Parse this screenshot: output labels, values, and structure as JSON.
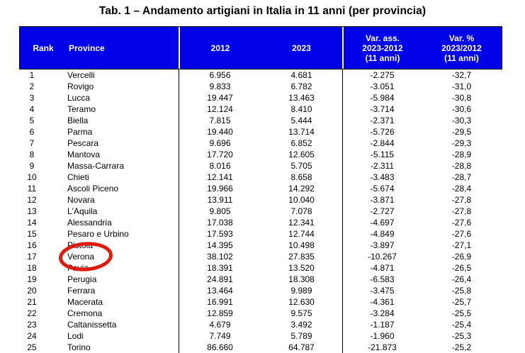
{
  "title": "Tab. 1 – Andamento artigiani in Italia in 11 anni (per provincia)",
  "table": {
    "columns": [
      "Rank",
      "Province",
      "2012",
      "2023",
      "Var. ass.\n2023-2012\n(11 anni)",
      "Var. %\n2023/2012\n(11 anni)"
    ],
    "rows": [
      [
        "1",
        "Vercelli",
        "6.956",
        "4.681",
        "-2.275",
        "-32,7"
      ],
      [
        "2",
        "Rovigo",
        "9.833",
        "6.782",
        "-3.051",
        "-31,0"
      ],
      [
        "3",
        "Lucca",
        "19.447",
        "13.463",
        "-5.984",
        "-30,8"
      ],
      [
        "4",
        "Teramo",
        "12.124",
        "8.410",
        "-3.714",
        "-30,6"
      ],
      [
        "5",
        "Biella",
        "7.815",
        "5.444",
        "-2.371",
        "-30,3"
      ],
      [
        "6",
        "Parma",
        "19.440",
        "13.714",
        "-5.726",
        "-29,5"
      ],
      [
        "7",
        "Pescara",
        "9.696",
        "6.852",
        "-2.844",
        "-29,3"
      ],
      [
        "8",
        "Mantova",
        "17.720",
        "12.605",
        "-5.115",
        "-28,9"
      ],
      [
        "9",
        "Massa-Carrara",
        "8.016",
        "5.705",
        "-2.311",
        "-28,8"
      ],
      [
        "10",
        "Chieti",
        "12.141",
        "8.658",
        "-3.483",
        "-28,7"
      ],
      [
        "11",
        "Ascoli Piceno",
        "19.966",
        "14.292",
        "-5.674",
        "-28,4"
      ],
      [
        "12",
        "Novara",
        "13.911",
        "10.040",
        "-3.871",
        "-27,8"
      ],
      [
        "13",
        "L'Aquila",
        "9.805",
        "7.078",
        "-2.727",
        "-27,8"
      ],
      [
        "14",
        "Alessandria",
        "17.038",
        "12.341",
        "-4.697",
        "-27,6"
      ],
      [
        "15",
        "Pesaro e Urbino",
        "17.593",
        "12.744",
        "-4.849",
        "-27,6"
      ],
      [
        "16",
        "Pistoia",
        "14.395",
        "10.498",
        "-3.897",
        "-27,1"
      ],
      [
        "17",
        "Verona",
        "38.102",
        "27.835",
        "-10.267",
        "-26,9"
      ],
      [
        "18",
        "Pavia",
        "18.391",
        "13.520",
        "-4.871",
        "-26,5"
      ],
      [
        "19",
        "Perugia",
        "24.891",
        "18.308",
        "-6.583",
        "-26,4"
      ],
      [
        "20",
        "Ferrara",
        "13.464",
        "9.989",
        "-3.475",
        "-25,8"
      ],
      [
        "21",
        "Macerata",
        "16.991",
        "12.630",
        "-4.361",
        "-25,7"
      ],
      [
        "22",
        "Cremona",
        "12.859",
        "9.575",
        "-3.284",
        "-25,5"
      ],
      [
        "23",
        "Caltanissetta",
        "4.679",
        "3.492",
        "-1.187",
        "-25,4"
      ],
      [
        "24",
        "Lodi",
        "7.749",
        "5.789",
        "-1.960",
        "-25,3"
      ],
      [
        "25",
        "Torino",
        "86.660",
        "64.787",
        "-21.873",
        "-25,2"
      ]
    ]
  },
  "annotation": {
    "type": "hand-drawn red ellipse",
    "around_text": "Verona",
    "row_rank": "17",
    "color": "#de1c0e"
  },
  "colors": {
    "header_bg": "#0202e8",
    "header_text": "#ffffff",
    "body_text": "#000000",
    "grid_line": "#000000"
  }
}
